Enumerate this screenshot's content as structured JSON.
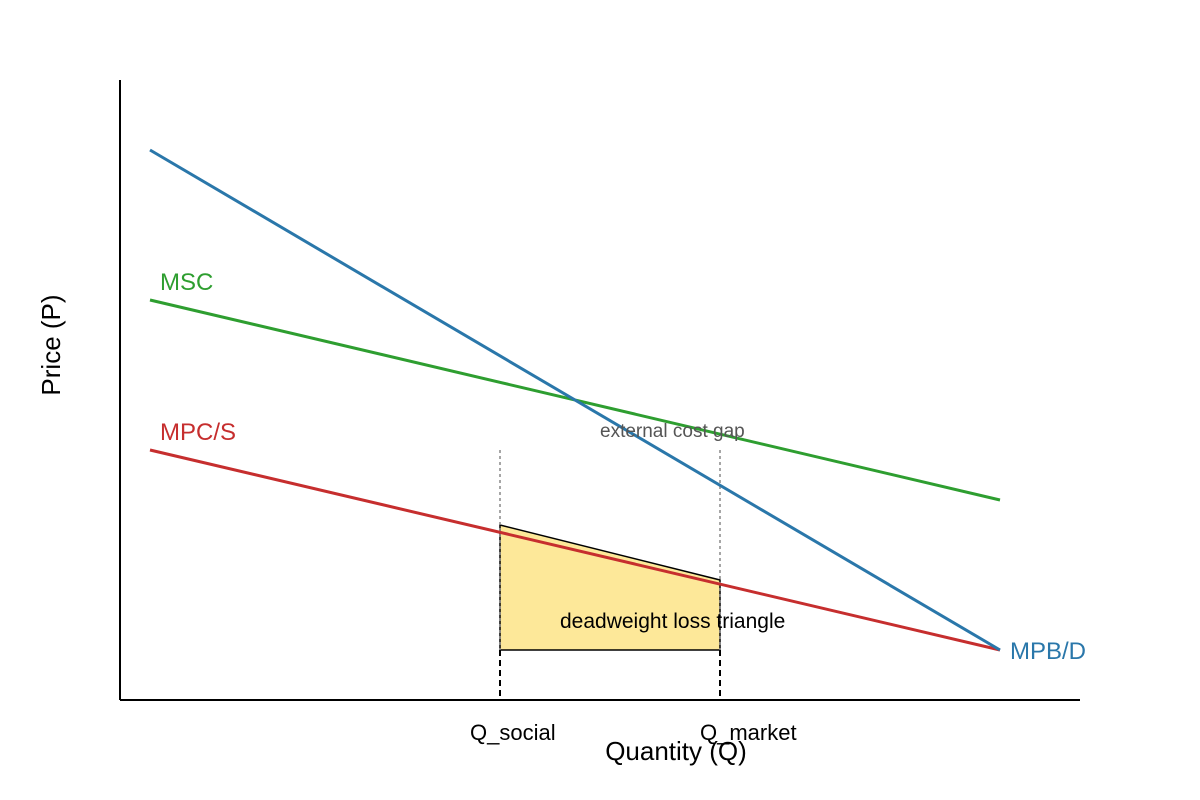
{
  "chart_data": {
    "type": "line",
    "title": "",
    "xlabel": "Quantity (Q)",
    "ylabel": "Price (P)",
    "xlim": [
      0,
      96
    ],
    "ylim": [
      0,
      62
    ],
    "grid": false,
    "axis_ticks_numeric": false,
    "series": [
      {
        "name": "MPB/D",
        "color": "#2a77aa",
        "points": [
          [
            3,
            55
          ],
          [
            88,
            5
          ]
        ]
      },
      {
        "name": "MSC",
        "color": "#2e9e30",
        "points": [
          [
            3,
            40
          ],
          [
            88,
            20
          ]
        ]
      },
      {
        "name": "MPC/S",
        "color": "#c62e2e",
        "points": [
          [
            3,
            25
          ],
          [
            88,
            5
          ]
        ]
      }
    ],
    "reference_lines": [
      {
        "label": "Q_social",
        "x": 38
      },
      {
        "label": "Q_market",
        "x": 60
      }
    ],
    "shaded_region": {
      "label": "deadweight loss triangle",
      "color": "#fde899",
      "polygon": [
        [
          38,
          17.5
        ],
        [
          60,
          12
        ],
        [
          60,
          5
        ],
        [
          38,
          5
        ]
      ]
    },
    "annotations": [
      {
        "text": "external cost gap",
        "x": 48,
        "y": 26.3
      }
    ]
  }
}
